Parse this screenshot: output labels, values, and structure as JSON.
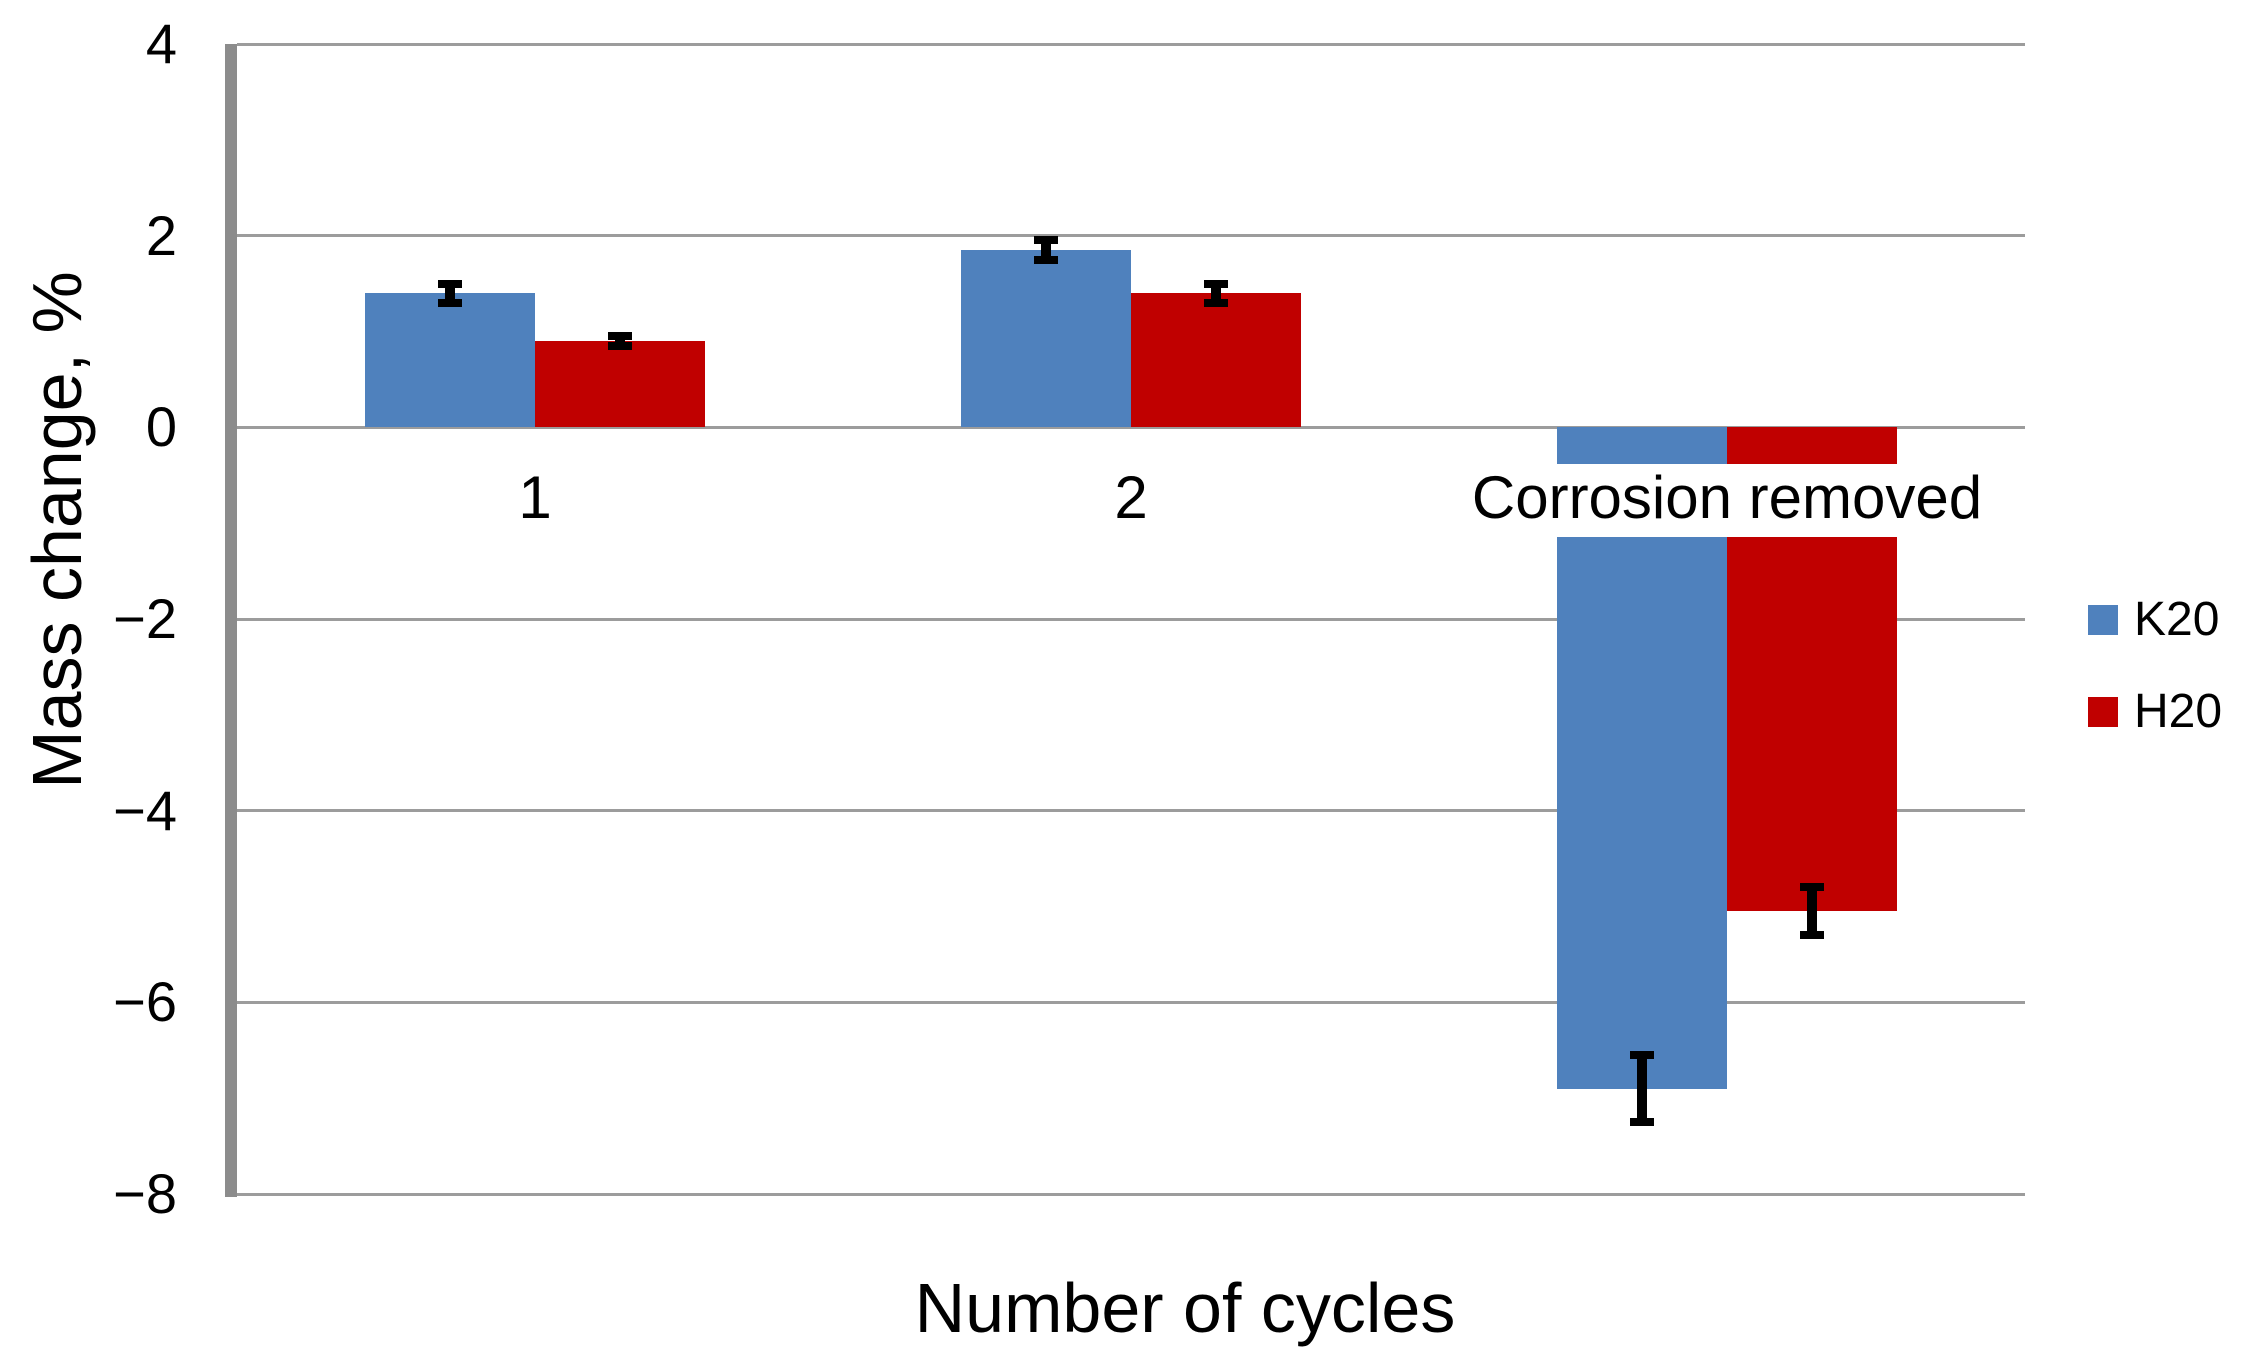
{
  "chart_data": {
    "type": "bar",
    "title": "",
    "xlabel": "Number of cycles",
    "ylabel": "Mass change, %",
    "categories": [
      "1",
      "2",
      "Corrosion removed"
    ],
    "series": [
      {
        "name": "K20",
        "color": "#4F81BD",
        "values": [
          1.4,
          1.85,
          -6.9
        ],
        "error_bars": [
          0.1,
          0.1,
          0.35
        ]
      },
      {
        "name": "H20",
        "color": "#C00000",
        "values": [
          0.9,
          1.4,
          -5.05
        ],
        "error_bars": [
          0.05,
          0.1,
          0.25
        ]
      }
    ],
    "ylim": [
      -8,
      4
    ],
    "yticks": [
      4,
      2,
      0,
      -2,
      -4,
      -6,
      -8
    ],
    "grid": true,
    "legend_position": "right",
    "colors": {
      "gridline": "#9C9C9C",
      "axis_line": "#8C8C8C",
      "error_bar": "#000000",
      "text": "#000000",
      "background": "#FFFFFF"
    }
  }
}
